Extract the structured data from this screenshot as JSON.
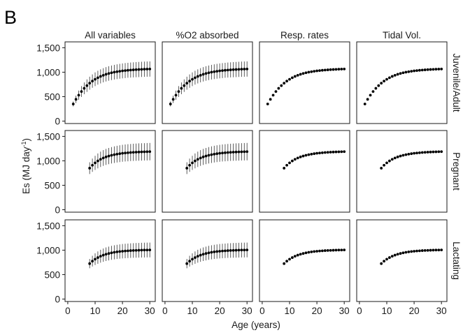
{
  "panel_label": "B",
  "chart_data": {
    "type": "scatter",
    "xlabel": "Age (years)",
    "ylabel_main": "Es (MJ day",
    "ylabel_sup": "-1",
    "ylabel_close": ")",
    "xlim": [
      -1,
      32
    ],
    "ylim": [
      -50,
      1620
    ],
    "x_ticks": [
      0,
      10,
      20,
      30
    ],
    "x_tick_labels": [
      "0",
      "10",
      "20",
      "30"
    ],
    "y_ticks": [
      0,
      500,
      1000,
      1500
    ],
    "y_tick_labels": [
      "0",
      "500",
      "1,000",
      "1,500"
    ],
    "grid": false,
    "columns": [
      "All variables",
      "%O2 absorbed",
      "Resp. rates",
      "Tidal Vol."
    ],
    "column_has_error_bars": [
      true,
      true,
      false,
      false
    ],
    "rows": [
      {
        "label": "Juvenile/Adult",
        "x": [
          2,
          3,
          4,
          5,
          6,
          7,
          8,
          9,
          10,
          11,
          12,
          13,
          14,
          15,
          16,
          17,
          18,
          19,
          20,
          21,
          22,
          23,
          24,
          25,
          26,
          27,
          28,
          29,
          30
        ],
        "y": [
          350,
          445,
          530,
          605,
          670,
          725,
          775,
          818,
          855,
          887,
          914,
          937,
          957,
          974,
          988,
          1000,
          1010,
          1019,
          1027,
          1033,
          1039,
          1044,
          1048,
          1052,
          1055,
          1058,
          1061,
          1063,
          1065
        ],
        "err": [
          50,
          75,
          95,
          110,
          120,
          128,
          133,
          137,
          140,
          142,
          144,
          145,
          147,
          148,
          149,
          150,
          151,
          152,
          152,
          153,
          153,
          154,
          154,
          155,
          155,
          155,
          156,
          156,
          156
        ]
      },
      {
        "label": "Pregnant",
        "x": [
          8,
          9,
          10,
          11,
          12,
          13,
          14,
          15,
          16,
          17,
          18,
          19,
          20,
          21,
          22,
          23,
          24,
          25,
          26,
          27,
          28,
          29,
          30
        ],
        "y": [
          850,
          910,
          958,
          998,
          1031,
          1058,
          1080,
          1098,
          1113,
          1126,
          1137,
          1146,
          1154,
          1160,
          1165,
          1170,
          1174,
          1177,
          1180,
          1182,
          1184,
          1186,
          1188
        ],
        "err": [
          120,
          135,
          145,
          152,
          157,
          161,
          164,
          166,
          168,
          170,
          171,
          172,
          173,
          174,
          175,
          175,
          176,
          176,
          177,
          177,
          177,
          178,
          178
        ]
      },
      {
        "label": "Lactating",
        "x": [
          8,
          9,
          10,
          11,
          12,
          13,
          14,
          15,
          16,
          17,
          18,
          19,
          20,
          21,
          22,
          23,
          24,
          25,
          26,
          27,
          28,
          29,
          30
        ],
        "y": [
          725,
          775,
          815,
          848,
          876,
          898,
          917,
          932,
          945,
          956,
          965,
          972,
          978,
          983,
          987,
          991,
          994,
          996,
          998,
          1000,
          1002,
          1003,
          1004
        ],
        "err": [
          95,
          110,
          120,
          127,
          132,
          136,
          139,
          141,
          143,
          144,
          145,
          146,
          147,
          148,
          148,
          149,
          149,
          150,
          150,
          150,
          151,
          151,
          151
        ]
      }
    ]
  }
}
